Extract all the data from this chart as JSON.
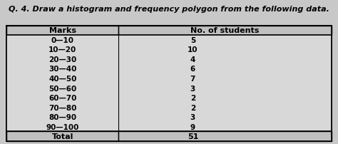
{
  "title": "Q. 4. Draw a histogram and frequency polygon from the following data.",
  "col1_header": "Marks",
  "col2_header": "No. of students",
  "rows": [
    [
      "0—10",
      "5"
    ],
    [
      "10—20",
      "10"
    ],
    [
      "20—30",
      "4"
    ],
    [
      "30—40",
      "6"
    ],
    [
      "40—50",
      "7"
    ],
    [
      "50—60",
      "3"
    ],
    [
      "60—70",
      "2"
    ],
    [
      "70—80",
      "2"
    ],
    [
      "80—90",
      "3"
    ],
    [
      "90—100",
      "9"
    ]
  ],
  "total_label": "Total",
  "total_value": "51",
  "bg_color": "#c8c8c8",
  "table_bg": "#d4d4d4",
  "header_bg": "#c0c0c0",
  "row_bg": "#d8d8d8",
  "title_fontsize": 8.0,
  "header_fontsize": 8.0,
  "row_fontsize": 7.5,
  "total_fontsize": 8.0,
  "col_split": 0.35
}
